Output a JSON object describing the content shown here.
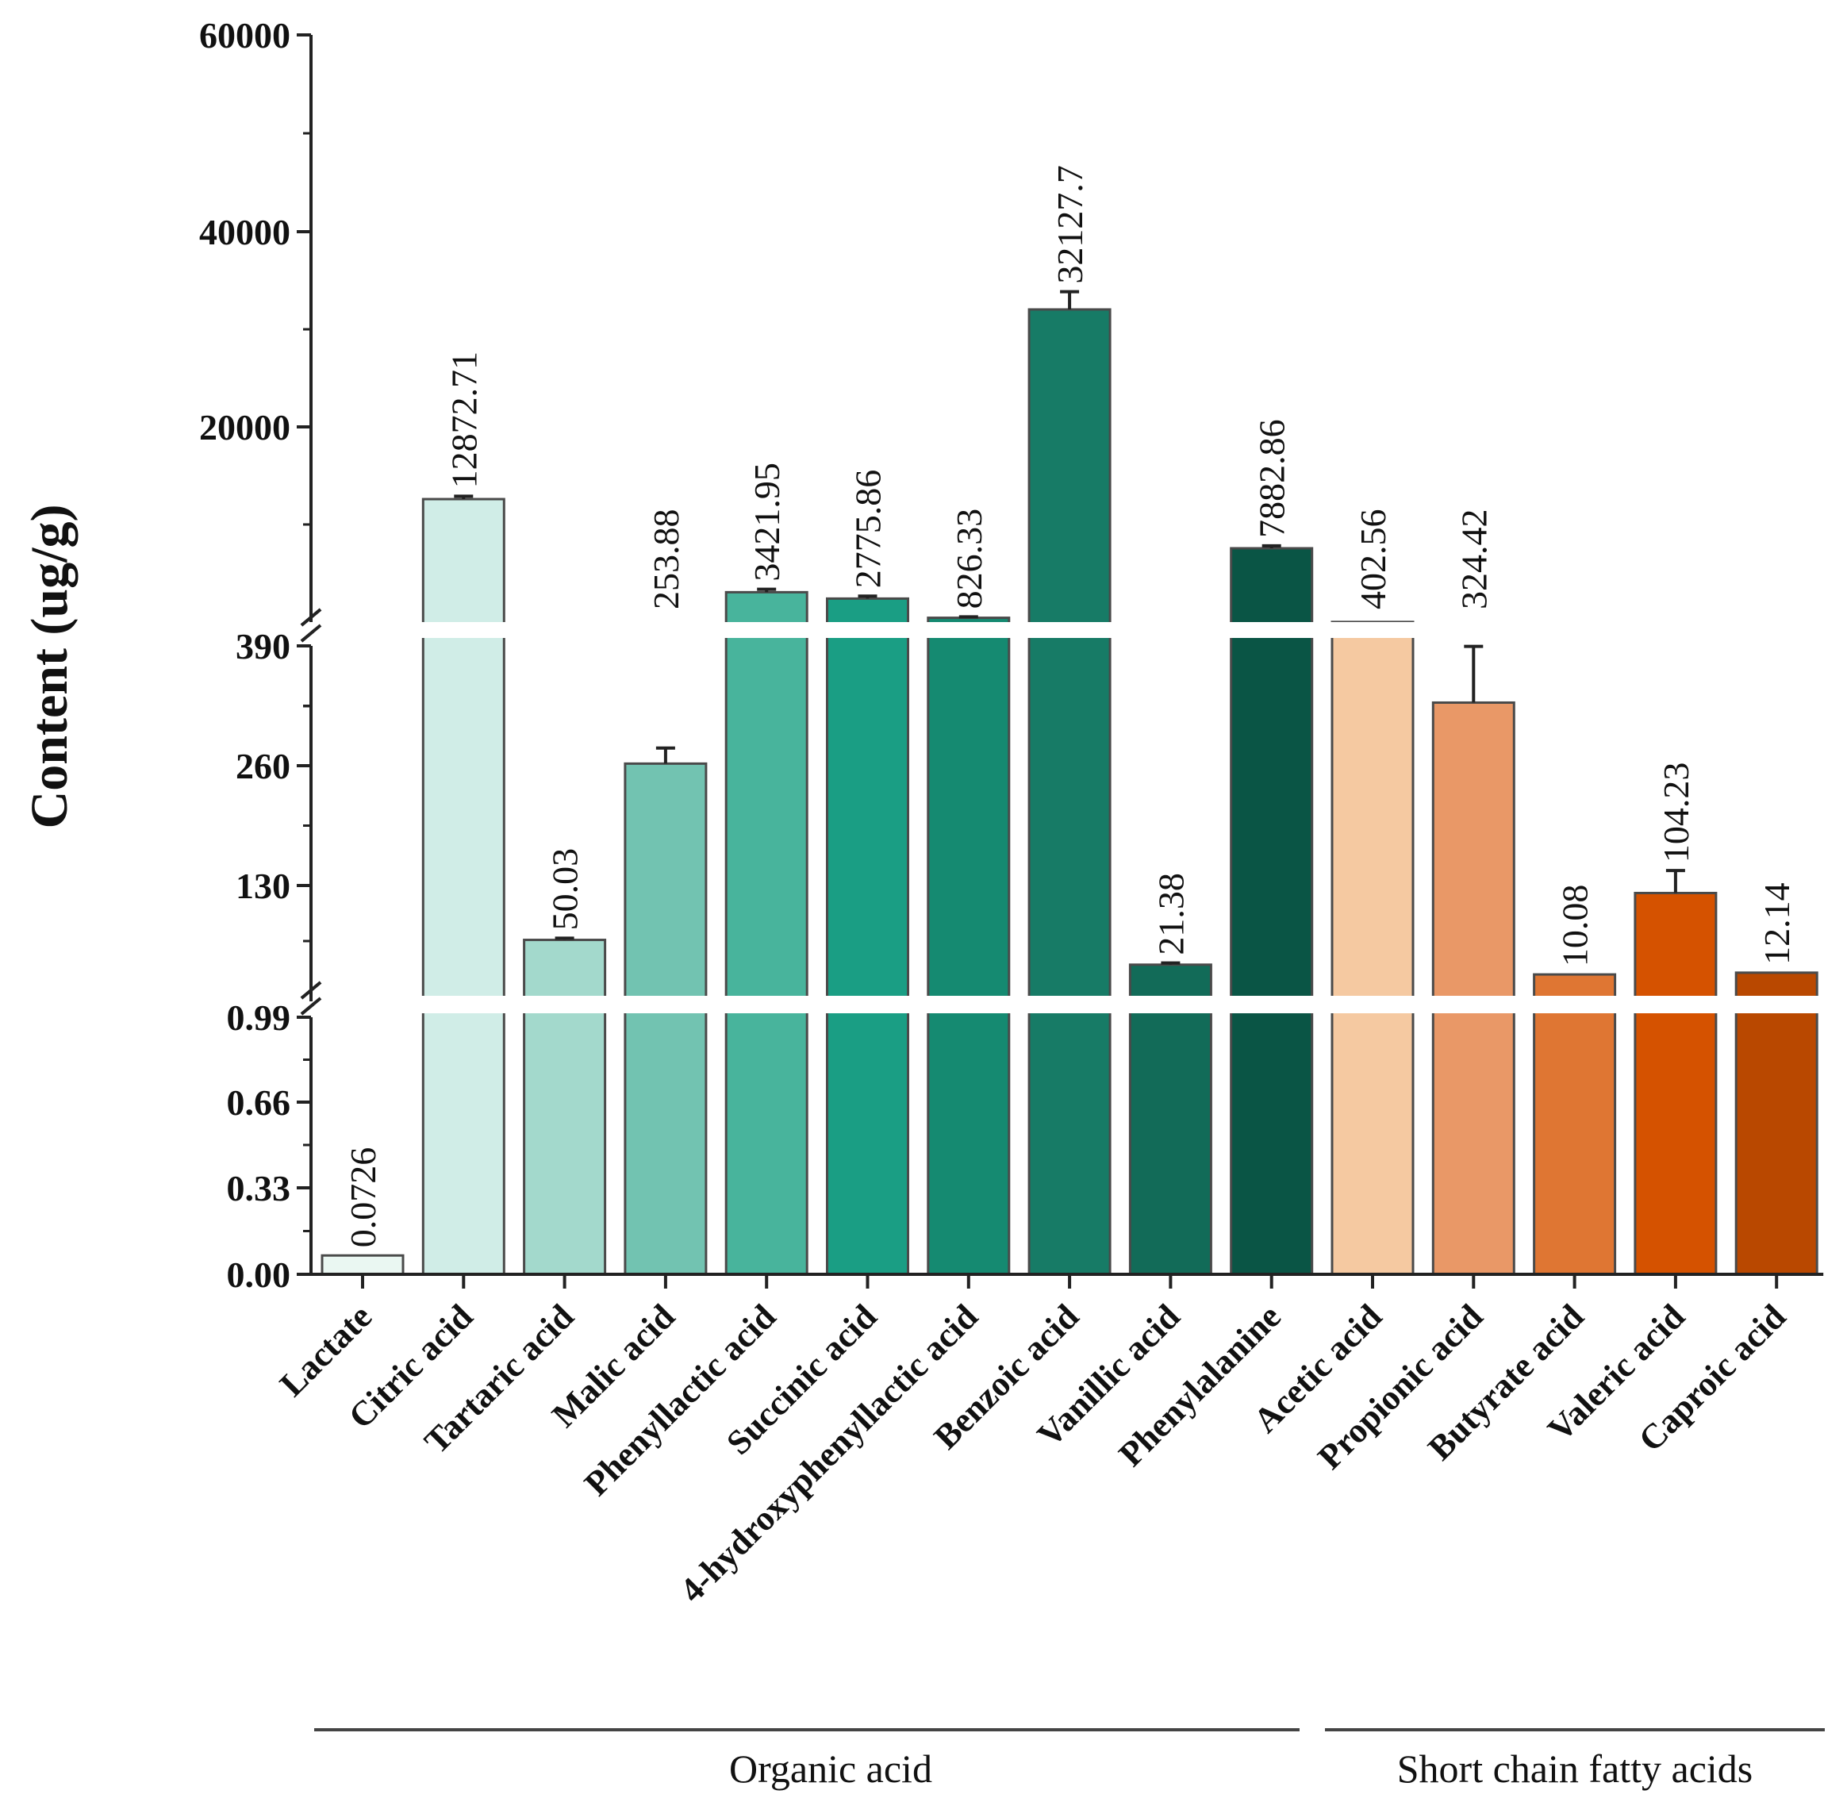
{
  "chart_data": {
    "type": "bar",
    "ylabel": "Content (ug/g)",
    "xlabel": "",
    "title": "",
    "y_axis_broken": true,
    "segments": [
      {
        "name": "lower",
        "ylim": [
          0,
          0.99
        ],
        "ticks": [
          0.0,
          0.33,
          0.66,
          0.99
        ],
        "tick_labels": [
          "0.00",
          "0.33",
          "0.66",
          "0.99"
        ]
      },
      {
        "name": "middle",
        "ylim": [
          0.99,
          390
        ],
        "ticks": [
          130,
          260,
          390
        ],
        "tick_labels": [
          "130",
          "260",
          "390"
        ]
      },
      {
        "name": "upper",
        "ylim": [
          390,
          60000
        ],
        "ticks": [
          20000,
          40000,
          60000
        ],
        "tick_labels": [
          "20000",
          "40000",
          "60000"
        ]
      }
    ],
    "categories": [
      "Lactate",
      "Citric acid",
      "Tartaric acid",
      "Malic acid",
      "Phenyllactic acid",
      "Succinic acid",
      "4-hydroxyphenyllactic acid",
      "Benzoic acid",
      "Vanillic acid",
      "Phenylalanine",
      "Acetic acid",
      "Propionic acid",
      "Butyrate acid",
      "Valeric acid",
      "Caproic acid"
    ],
    "values": [
      0.0726,
      12872.71,
      50.03,
      253.88,
      3421.95,
      2775.86,
      826.33,
      32127.7,
      21.38,
      7882.86,
      402.56,
      324.42,
      10.08,
      104.23,
      12.14
    ],
    "value_labels": [
      "0.0726",
      "12872.71",
      "50.03",
      "253.88",
      "3421.95",
      "2775.86",
      "826.33",
      "32127.7",
      "21.38",
      "7882.86",
      "402.56",
      "324.42",
      "10.08",
      "104.23",
      "12.14"
    ],
    "errors": [
      0,
      300,
      2,
      18,
      300,
      250,
      100,
      1800,
      2,
      250,
      0,
      65,
      0,
      26,
      0
    ],
    "colors": [
      "#eaf7f2",
      "#d0ede7",
      "#a3d9cc",
      "#72c3b1",
      "#48b49c",
      "#1a9e84",
      "#158a71",
      "#177b66",
      "#126b58",
      "#0a5545",
      "#f5c9a1",
      "#e99867",
      "#df7633",
      "#d55200",
      "#b94800"
    ],
    "groups": [
      {
        "name": "Organic acid",
        "from": 0,
        "to": 9
      },
      {
        "name": "Short chain fatty acids",
        "from": 10,
        "to": 14
      }
    ]
  }
}
